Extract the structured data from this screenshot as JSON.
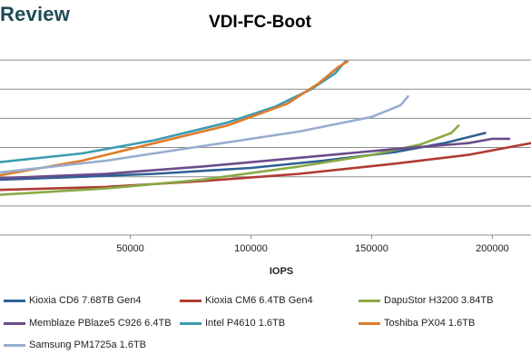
{
  "header": {
    "brand": "Review"
  },
  "chart_data": {
    "type": "line",
    "title": "VDI-FC-Boot",
    "xlabel": "IOPS",
    "ylabel": "",
    "xlim": [
      -4000,
      216000
    ],
    "ylim": [
      0,
      6.5
    ],
    "x_ticks": [
      50000,
      100000,
      150000,
      200000
    ],
    "x_tick_labels": [
      "50000",
      "100000",
      "150000",
      "200000"
    ],
    "y_gridlines": [
      1,
      2,
      3,
      4,
      5,
      6
    ],
    "grid": true,
    "legend_position": "bottom",
    "series": [
      {
        "name": "Kioxia CD6 7.68TB Gen4",
        "color": "#2e6193",
        "points": [
          [
            -4000,
            1.9
          ],
          [
            30000,
            2.0
          ],
          [
            60000,
            2.1
          ],
          [
            100000,
            2.3
          ],
          [
            130000,
            2.55
          ],
          [
            160000,
            2.85
          ],
          [
            180000,
            3.15
          ],
          [
            197000,
            3.5
          ]
        ]
      },
      {
        "name": "Kioxia CM6 6.4TB Gen4",
        "color": "#b03b33",
        "points": [
          [
            -4000,
            1.55
          ],
          [
            40000,
            1.65
          ],
          [
            80000,
            1.85
          ],
          [
            120000,
            2.1
          ],
          [
            160000,
            2.45
          ],
          [
            190000,
            2.75
          ],
          [
            216000,
            3.15
          ]
        ]
      },
      {
        "name": "DapuStor H3200 3.84TB",
        "color": "#8aaa46",
        "points": [
          [
            -4000,
            1.38
          ],
          [
            40000,
            1.6
          ],
          [
            80000,
            1.9
          ],
          [
            120000,
            2.35
          ],
          [
            150000,
            2.75
          ],
          [
            170000,
            3.1
          ],
          [
            183000,
            3.5
          ],
          [
            186000,
            3.75
          ]
        ]
      },
      {
        "name": "Memblaze PBlaze5 C926 6.4TB",
        "color": "#6a4c8c",
        "points": [
          [
            -4000,
            1.95
          ],
          [
            40000,
            2.1
          ],
          [
            80000,
            2.35
          ],
          [
            120000,
            2.65
          ],
          [
            160000,
            2.95
          ],
          [
            190000,
            3.15
          ],
          [
            200000,
            3.3
          ],
          [
            207000,
            3.3
          ]
        ]
      },
      {
        "name": "Intel P4610 1.6TB",
        "color": "#3c9bb0",
        "points": [
          [
            -4000,
            2.5
          ],
          [
            30000,
            2.8
          ],
          [
            60000,
            3.25
          ],
          [
            90000,
            3.85
          ],
          [
            110000,
            4.4
          ],
          [
            125000,
            5.0
          ],
          [
            135000,
            5.55
          ],
          [
            139000,
            5.95
          ]
        ]
      },
      {
        "name": "Toshiba PX04 1.6TB",
        "color": "#e07c2a",
        "points": [
          [
            -4000,
            2.05
          ],
          [
            30000,
            2.55
          ],
          [
            60000,
            3.15
          ],
          [
            90000,
            3.75
          ],
          [
            115000,
            4.5
          ],
          [
            128000,
            5.2
          ],
          [
            136000,
            5.75
          ],
          [
            140000,
            5.95
          ]
        ]
      },
      {
        "name": "Samsung PM1725a 1.6TB",
        "color": "#97adcf",
        "points": [
          [
            -4000,
            2.15
          ],
          [
            40000,
            2.55
          ],
          [
            80000,
            3.05
          ],
          [
            120000,
            3.55
          ],
          [
            150000,
            4.05
          ],
          [
            162000,
            4.45
          ],
          [
            165000,
            4.75
          ]
        ]
      }
    ]
  }
}
